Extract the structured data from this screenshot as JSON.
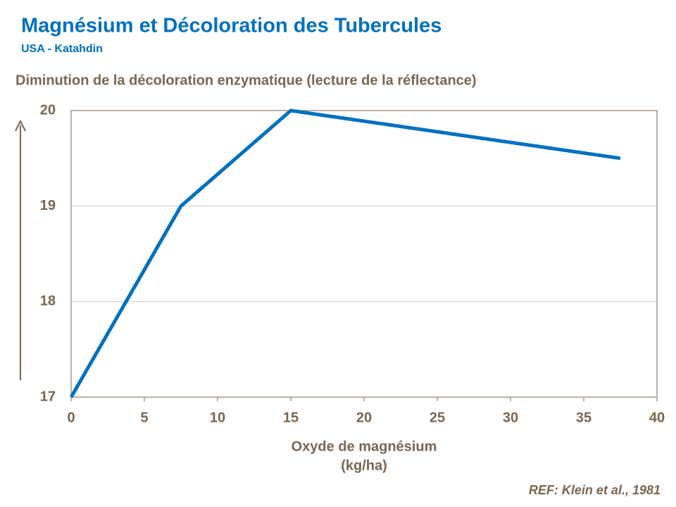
{
  "chart_data": {
    "type": "line",
    "title": "Magnésium et Décoloration des Tubercules",
    "subtitle": "USA  - Katahdin",
    "y_label": "Diminution de la décoloration enzymatique (lecture de la réflectance)",
    "x_label": [
      "Oxyde de magnésium",
      "(kg/ha)"
    ],
    "annotation": "REF: Klein et al., 1981",
    "x": [
      0,
      7.5,
      15,
      37.5
    ],
    "series": [
      {
        "color": "#0070c0",
        "values": [
          17,
          19,
          20,
          19.5
        ]
      }
    ],
    "xlim": [
      0,
      40
    ],
    "xticks": [
      0,
      5,
      10,
      15,
      20,
      25,
      30,
      35,
      40
    ],
    "ylim": [
      17,
      20
    ],
    "yticks": [
      17,
      18,
      19,
      20
    ],
    "grid": true
  }
}
